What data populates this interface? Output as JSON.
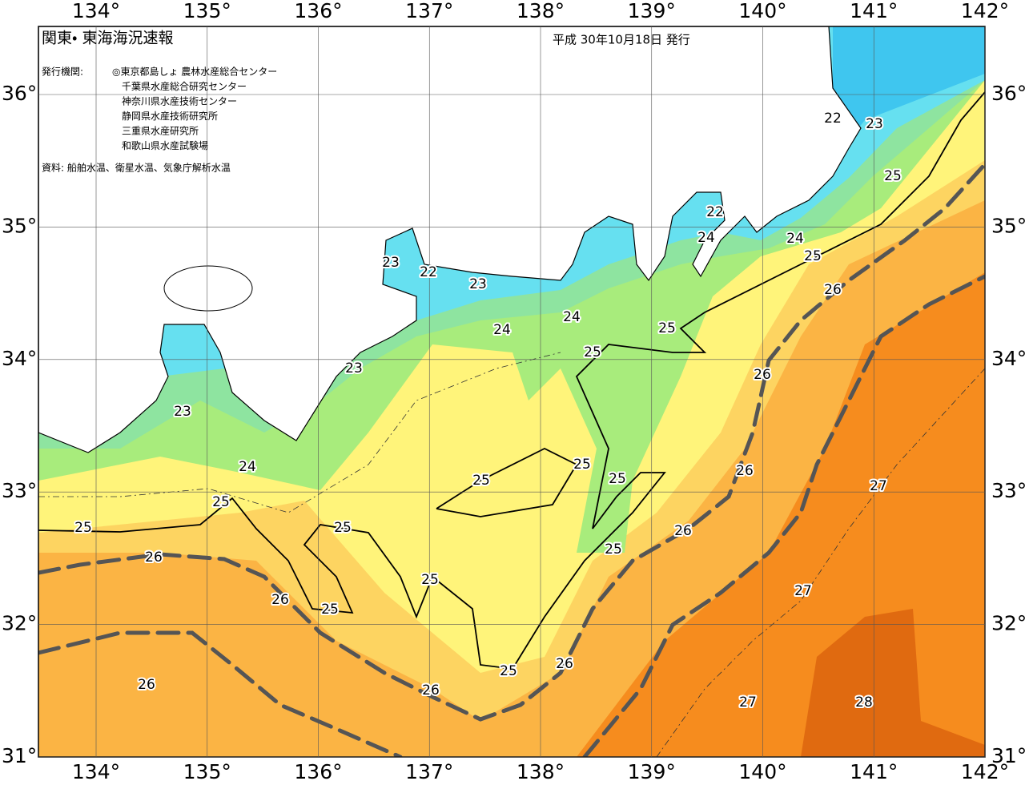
{
  "header": {
    "title": "関東・ 東海海況速報",
    "date": "平成 30年10月18日 発行"
  },
  "publishers": {
    "label": "発行機関:",
    "items": [
      "◎東京都島しょ 農林水産総合センター",
      "千葉県水産総合研究センター",
      "神奈川県水産技術センター",
      "静岡県水産技術研究所",
      "三重県水産研究所",
      "和歌山県水産試験場"
    ]
  },
  "source": "資料: 船舶水温、衛星水温、気象庁解析水温",
  "map": {
    "lon_ticks": [
      {
        "value": 134,
        "label": "134°"
      },
      {
        "value": 135,
        "label": "135°"
      },
      {
        "value": 136,
        "label": "136°"
      },
      {
        "value": 137,
        "label": "137°"
      },
      {
        "value": 138,
        "label": "138°"
      },
      {
        "value": 139,
        "label": "139°"
      },
      {
        "value": 140,
        "label": "140°"
      },
      {
        "value": 141,
        "label": "141°"
      },
      {
        "value": 142,
        "label": "142°"
      }
    ],
    "lat_ticks": [
      {
        "value": 31,
        "label": "31°"
      },
      {
        "value": 32,
        "label": "32°"
      },
      {
        "value": 33,
        "label": "33°"
      },
      {
        "value": 34,
        "label": "34°"
      },
      {
        "value": 35,
        "label": "35°"
      },
      {
        "value": 36,
        "label": "36°"
      }
    ],
    "contour_labels": [
      22,
      23,
      25,
      22,
      24,
      24,
      25,
      26,
      23,
      22,
      23,
      24,
      24,
      25,
      25,
      23,
      26,
      23,
      24,
      25,
      25,
      25,
      26,
      27,
      25,
      25,
      25,
      26,
      25,
      26,
      25,
      26,
      25,
      27,
      26,
      25,
      26,
      26,
      27,
      28
    ]
  }
}
